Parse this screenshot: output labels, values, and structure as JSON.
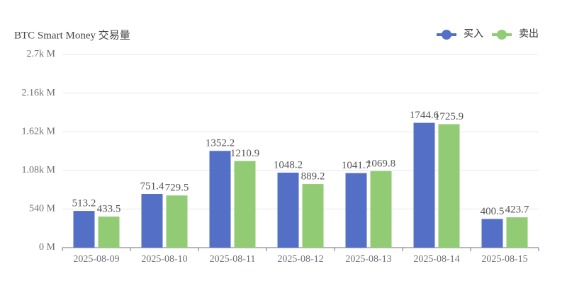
{
  "chart_data": {
    "type": "bar",
    "title": "BTC Smart Money 交易量",
    "categories": [
      "2025-08-09",
      "2025-08-10",
      "2025-08-11",
      "2025-08-12",
      "2025-08-13",
      "2025-08-14",
      "2025-08-15"
    ],
    "series": [
      {
        "name": "买入",
        "color": "#5470c6",
        "values": [
          513.2,
          751.4,
          1352.2,
          1048.2,
          1041.7,
          1744.6,
          400.5
        ]
      },
      {
        "name": "卖出",
        "color": "#91cc75",
        "values": [
          433.5,
          729.5,
          1210.9,
          889.2,
          1069.8,
          1725.9,
          423.7
        ]
      }
    ],
    "ylim": [
      0,
      2700
    ],
    "yticks": [
      {
        "value": 0,
        "label": "0 M"
      },
      {
        "value": 540,
        "label": "540 M"
      },
      {
        "value": 1080,
        "label": "1.08k M"
      },
      {
        "value": 1620,
        "label": "1.62k M"
      },
      {
        "value": 2160,
        "label": "2.16k M"
      },
      {
        "value": 2700,
        "label": "2.7k M"
      }
    ],
    "grid": true,
    "legend": "top-right"
  }
}
